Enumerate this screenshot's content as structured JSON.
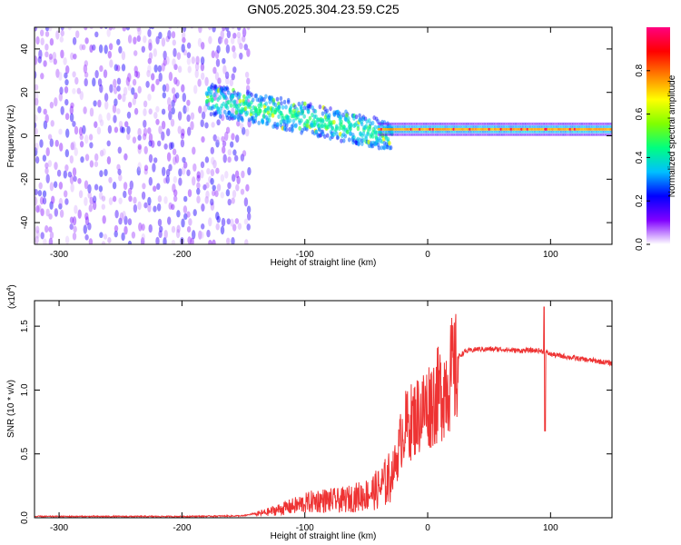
{
  "chart_data": [
    {
      "type": "heatmap",
      "title": "GN05.2025.304.23.59.C25",
      "xlabel": "Height of straight line (km)",
      "ylabel": "Frequency (Hz)",
      "xlim": [
        -320,
        150
      ],
      "ylim": [
        -50,
        50
      ],
      "xticks": [
        -300,
        -200,
        -100,
        0,
        100
      ],
      "yticks": [
        40,
        20,
        0,
        -20,
        -40
      ],
      "colorbar": {
        "label": "Normalized spectral amplitude",
        "range": [
          0,
          1
        ],
        "ticks": [
          "0.0",
          "0.2",
          "0.4",
          "0.6",
          "0.8"
        ],
        "colors": [
          "#ffffff",
          "#8000ff",
          "#0000ff",
          "#00c0ff",
          "#00ff80",
          "#80ff00",
          "#ffff00",
          "#ff8000",
          "#ff0000",
          "#ff0080"
        ]
      },
      "features": [
        {
          "name": "broadband noise",
          "x_range": [
            -320,
            -150
          ],
          "freq_range": [
            -50,
            50
          ],
          "amplitude": 0.1
        },
        {
          "name": "decaying band",
          "x_range": [
            -180,
            -30
          ],
          "freq_start": 17,
          "freq_end": 0,
          "amplitude": 0.3
        },
        {
          "name": "narrow tone",
          "x_range": [
            -30,
            150
          ],
          "freq": 3,
          "amplitude": 0.9
        }
      ]
    },
    {
      "type": "line",
      "xlabel": "Height of straight line (km)",
      "ylabel": "SNR (10 * v/v)",
      "yscale_label": "(x10",
      "yscale_exp": "4",
      "yscale_close": ")",
      "xlim": [
        -320,
        150
      ],
      "ylim": [
        0,
        1.7
      ],
      "xticks": [
        -300,
        -200,
        -100,
        0,
        100
      ],
      "yticks": [
        "0.0",
        "0.5",
        "1.0",
        "1.5"
      ],
      "color": "#ee3333",
      "series": [
        {
          "name": "SNR envelope",
          "x": [
            -320,
            -200,
            -150,
            -130,
            -110,
            -90,
            -70,
            -50,
            -40,
            -30,
            -25,
            -20,
            -10,
            0,
            10,
            20,
            30,
            40,
            50,
            60,
            70,
            80,
            90,
            95,
            100,
            120,
            150
          ],
          "y": [
            0.005,
            0.005,
            0.01,
            0.05,
            0.1,
            0.15,
            0.15,
            0.2,
            0.25,
            0.35,
            0.5,
            0.75,
            0.85,
            0.95,
            1.05,
            1.22,
            1.3,
            1.32,
            1.32,
            1.32,
            1.31,
            1.31,
            1.31,
            1.3,
            1.28,
            1.25,
            1.21
          ]
        },
        {
          "name": "spike",
          "x": [
            95
          ],
          "y": [
            1.65
          ]
        }
      ]
    }
  ]
}
